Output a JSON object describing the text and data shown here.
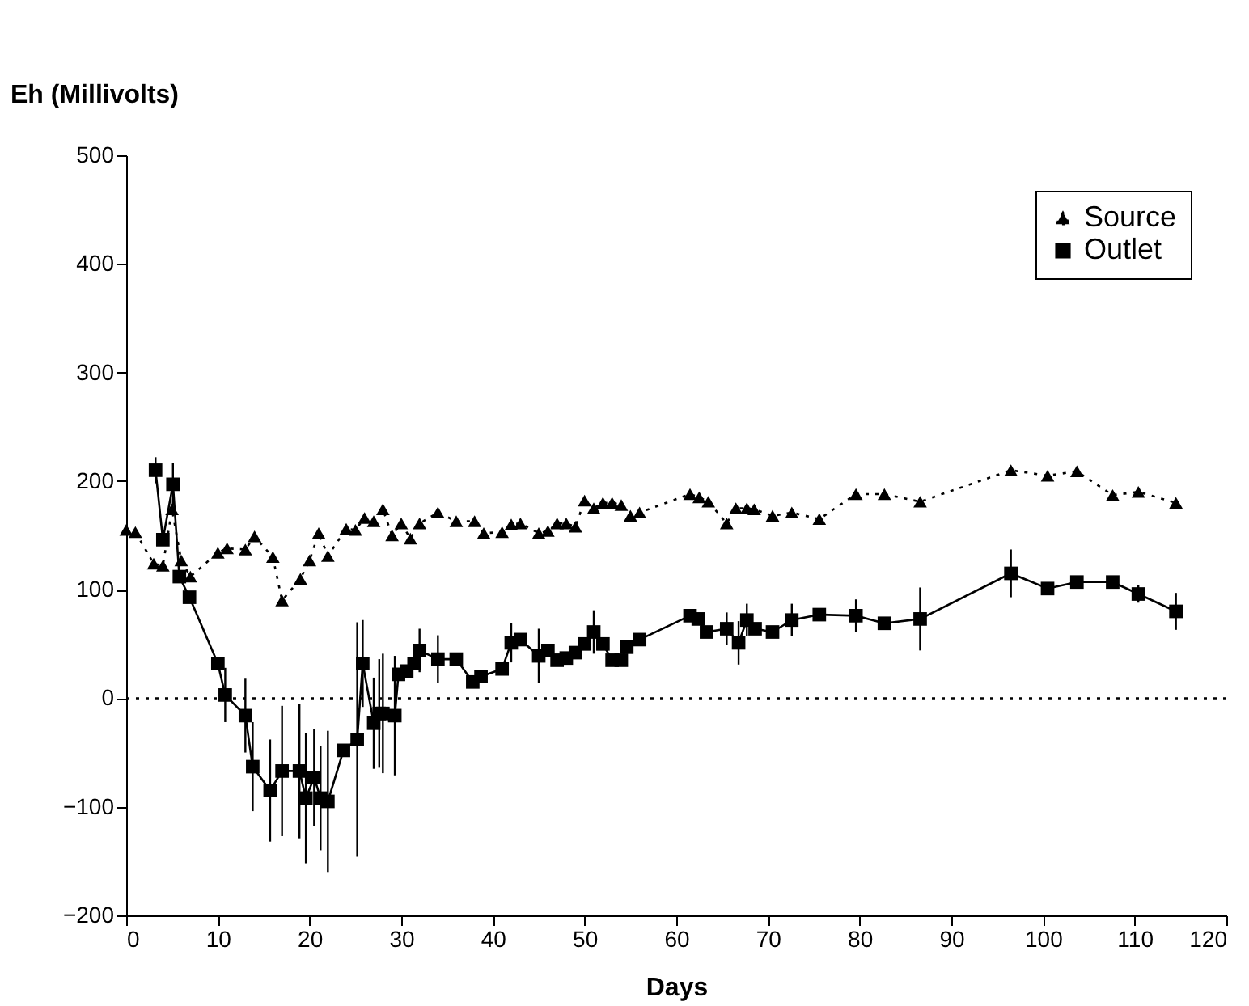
{
  "chart_data": {
    "type": "line",
    "xlabel": "Days",
    "ylabel": "Eh (Millivolts)",
    "xlim": [
      0,
      120
    ],
    "xticks": [
      0,
      10,
      20,
      30,
      40,
      50,
      60,
      70,
      80,
      90,
      100,
      110,
      120
    ],
    "ylim": [
      -200,
      500
    ],
    "yticks": [
      -200,
      -100,
      0,
      100,
      200,
      300,
      400,
      500
    ],
    "grid": false,
    "legend": "top right",
    "ref_lines": [
      {
        "axis": "y",
        "value": 0,
        "color": "#000000",
        "line_style": "dotted"
      }
    ],
    "series": [
      {
        "name": "Source",
        "color": "#000000",
        "marker": "triangle",
        "line_style": "dotted",
        "x": [
          0,
          1,
          3,
          4,
          5,
          6,
          7,
          10,
          11,
          13,
          14,
          16,
          17,
          19,
          20,
          21,
          22,
          24,
          25,
          26,
          27,
          28,
          29,
          30,
          31,
          32,
          34,
          36,
          38,
          39,
          41,
          42,
          43,
          45,
          46,
          47,
          48,
          49,
          50,
          51,
          52,
          53,
          54,
          55,
          56,
          61.5,
          62.5,
          63.5,
          65.5,
          66.5,
          67.7,
          68.5,
          70.5,
          72.6,
          75.6,
          79.6,
          82.7,
          86.6,
          96.5,
          100.5,
          103.7,
          107.6,
          110.4,
          114.5
        ],
        "values": [
          155,
          153,
          124,
          122,
          174,
          127,
          112,
          134,
          138,
          137,
          149,
          130,
          90,
          110,
          127,
          152,
          131,
          156,
          155,
          166,
          163,
          174,
          150,
          161,
          147,
          161,
          171,
          163,
          163,
          152,
          153,
          160,
          161,
          152,
          154,
          161,
          161,
          158,
          182,
          175,
          180,
          180,
          178,
          168,
          171,
          188,
          185,
          181,
          161,
          175,
          175,
          174,
          168,
          171,
          165,
          188,
          188,
          181,
          210,
          205,
          209,
          187,
          190,
          180
        ]
      },
      {
        "name": "Outlet",
        "color": "#000000",
        "marker": "square",
        "line_style": "solid",
        "x": [
          3.2,
          4,
          5.1,
          5.8,
          6.9,
          10,
          10.8,
          13,
          13.8,
          15.7,
          17,
          18.9,
          19.6,
          20.5,
          21.2,
          22,
          23.7,
          25.2,
          25.8,
          27,
          27.6,
          28,
          29.3,
          29.7,
          30.6,
          31.4,
          32,
          34,
          36,
          37.8,
          38.7,
          41,
          42,
          43,
          45,
          46,
          47,
          48,
          49,
          50,
          51,
          52,
          53,
          54,
          54.6,
          56,
          61.5,
          62.4,
          63.3,
          65.5,
          66.8,
          67.7,
          68.6,
          70.5,
          72.6,
          75.6,
          79.6,
          82.7,
          86.6,
          96.5,
          100.5,
          103.7,
          107.6,
          110.4,
          114.5
        ],
        "values": [
          210,
          146,
          197,
          112,
          93,
          32,
          3,
          -16,
          -63,
          -85,
          -67,
          -67,
          -92,
          -73,
          -92,
          -95,
          -48,
          -38,
          32,
          -23,
          -14,
          -14,
          -16,
          22,
          25,
          32,
          44,
          36,
          36,
          15,
          20,
          27,
          51,
          54,
          39,
          44,
          35,
          37,
          42,
          50,
          61,
          50,
          35,
          35,
          47,
          54,
          76,
          73,
          61,
          64,
          51,
          72,
          64,
          61,
          72,
          77,
          76,
          69,
          73,
          115,
          101,
          107,
          107,
          96,
          80
        ],
        "errors": [
          12,
          null,
          20,
          null,
          null,
          null,
          25,
          34,
          41,
          47,
          60,
          62,
          60,
          45,
          48,
          65,
          null,
          108,
          40,
          42,
          50,
          55,
          55,
          null,
          null,
          null,
          20,
          22,
          null,
          null,
          null,
          null,
          18,
          null,
          25,
          null,
          null,
          null,
          null,
          null,
          20,
          null,
          null,
          null,
          null,
          null,
          null,
          null,
          null,
          15,
          20,
          15,
          null,
          null,
          15,
          null,
          15,
          null,
          29,
          22,
          null,
          null,
          null,
          8,
          17
        ]
      }
    ]
  }
}
